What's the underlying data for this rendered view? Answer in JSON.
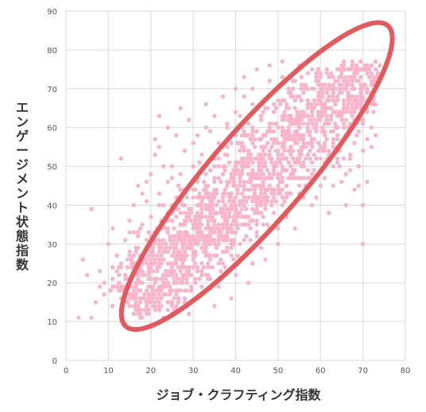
{
  "chart_data": {
    "type": "scatter",
    "title": "",
    "xlabel": "ジョブ・クラフティング指数",
    "ylabel": "エンゲージメント状態指数",
    "xlim": [
      0,
      80
    ],
    "ylim": [
      0,
      90
    ],
    "xticks": [
      "0",
      "10",
      "20",
      "30",
      "40",
      "50",
      "60",
      "70",
      "80"
    ],
    "yticks": [
      "0",
      "10",
      "20",
      "30",
      "40",
      "50",
      "60",
      "70",
      "80",
      "90"
    ],
    "grid": true,
    "point_color": "#f9b4cb",
    "ellipse_color": "#e5585b",
    "annotation_ellipse": {
      "center": [
        45,
        47.5
      ],
      "angle_deg": 49,
      "semi_major": 49,
      "semi_minor": 9.5
    },
    "series": [
      {
        "points": [
          [
            3,
            11
          ],
          [
            4,
            26
          ],
          [
            5,
            22
          ],
          [
            6,
            11
          ],
          [
            6,
            39
          ],
          [
            7,
            15
          ],
          [
            8,
            19
          ],
          [
            8,
            23
          ],
          [
            9,
            17
          ],
          [
            10,
            30
          ],
          [
            11,
            14
          ],
          [
            11,
            21
          ],
          [
            11,
            34
          ],
          [
            12,
            27
          ],
          [
            12,
            19
          ],
          [
            13,
            16
          ],
          [
            13,
            25
          ],
          [
            13,
            52
          ],
          [
            14,
            31
          ],
          [
            14,
            22
          ],
          [
            15,
            36
          ],
          [
            15,
            28
          ],
          [
            15,
            17
          ],
          [
            16,
            24
          ],
          [
            16,
            40
          ],
          [
            16,
            33
          ],
          [
            17,
            20
          ],
          [
            17,
            29
          ],
          [
            17,
            45
          ],
          [
            17,
            14
          ],
          [
            18,
            26
          ],
          [
            18,
            35
          ],
          [
            18,
            22
          ],
          [
            18,
            11
          ],
          [
            19,
            31
          ],
          [
            19,
            41
          ],
          [
            19,
            18
          ],
          [
            20,
            28
          ],
          [
            20,
            37
          ],
          [
            20,
            24
          ],
          [
            20,
            48
          ],
          [
            21,
            33
          ],
          [
            21,
            21
          ],
          [
            21,
            15
          ],
          [
            22,
            30
          ],
          [
            22,
            43
          ],
          [
            22,
            26
          ],
          [
            22,
            55
          ],
          [
            23,
            35
          ],
          [
            23,
            19
          ],
          [
            23,
            40
          ],
          [
            24,
            28
          ],
          [
            24,
            46
          ],
          [
            24,
            33
          ],
          [
            25,
            23
          ],
          [
            25,
            38
          ],
          [
            25,
            50
          ],
          [
            26,
            30
          ],
          [
            26,
            42
          ],
          [
            26,
            17
          ],
          [
            27,
            35
          ],
          [
            27,
            27
          ],
          [
            27,
            48
          ],
          [
            27,
            65
          ],
          [
            28,
            32
          ],
          [
            28,
            40
          ],
          [
            28,
            22
          ],
          [
            28,
            54
          ],
          [
            29,
            37
          ],
          [
            29,
            45
          ],
          [
            29,
            29
          ],
          [
            29,
            12
          ],
          [
            30,
            34
          ],
          [
            30,
            50
          ],
          [
            30,
            42
          ],
          [
            30,
            26
          ],
          [
            31,
            38
          ],
          [
            31,
            47
          ],
          [
            31,
            30
          ],
          [
            31,
            58
          ],
          [
            32,
            41
          ],
          [
            32,
            35
          ],
          [
            32,
            53
          ],
          [
            32,
            22
          ],
          [
            33,
            45
          ],
          [
            33,
            37
          ],
          [
            33,
            31
          ],
          [
            33,
            60
          ],
          [
            34,
            49
          ],
          [
            34,
            40
          ],
          [
            34,
            34
          ],
          [
            34,
            27
          ],
          [
            35,
            44
          ],
          [
            35,
            52
          ],
          [
            35,
            38
          ],
          [
            35,
            63
          ],
          [
            36,
            47
          ],
          [
            36,
            41
          ],
          [
            36,
            33
          ],
          [
            36,
            56
          ],
          [
            37,
            50
          ],
          [
            37,
            43
          ],
          [
            37,
            37
          ],
          [
            37,
            25
          ],
          [
            38,
            45
          ],
          [
            38,
            53
          ],
          [
            38,
            39
          ],
          [
            38,
            60
          ],
          [
            39,
            48
          ],
          [
            39,
            42
          ],
          [
            39,
            56
          ],
          [
            39,
            34
          ],
          [
            40,
            51
          ],
          [
            40,
            45
          ],
          [
            40,
            38
          ],
          [
            40,
            64
          ],
          [
            41,
            54
          ],
          [
            41,
            47
          ],
          [
            41,
            41
          ],
          [
            41,
            30
          ],
          [
            42,
            50
          ],
          [
            42,
            58
          ],
          [
            42,
            44
          ],
          [
            42,
            68
          ],
          [
            43,
            53
          ],
          [
            43,
            46
          ],
          [
            43,
            61
          ],
          [
            43,
            37
          ],
          [
            44,
            56
          ],
          [
            44,
            49
          ],
          [
            44,
            42
          ],
          [
            44,
            70
          ],
          [
            45,
            59
          ],
          [
            45,
            52
          ],
          [
            45,
            45
          ],
          [
            45,
            33
          ],
          [
            46,
            55
          ],
          [
            46,
            62
          ],
          [
            46,
            48
          ],
          [
            46,
            40
          ],
          [
            47,
            58
          ],
          [
            47,
            51
          ],
          [
            47,
            65
          ],
          [
            47,
            44
          ],
          [
            48,
            61
          ],
          [
            48,
            54
          ],
          [
            48,
            47
          ],
          [
            48,
            72
          ],
          [
            49,
            57
          ],
          [
            49,
            64
          ],
          [
            49,
            50
          ],
          [
            49,
            38
          ],
          [
            50,
            60
          ],
          [
            50,
            53
          ],
          [
            50,
            67
          ],
          [
            50,
            45
          ],
          [
            51,
            63
          ],
          [
            51,
            56
          ],
          [
            51,
            49
          ],
          [
            51,
            73
          ],
          [
            52,
            59
          ],
          [
            52,
            66
          ],
          [
            52,
            52
          ],
          [
            52,
            42
          ],
          [
            53,
            62
          ],
          [
            53,
            55
          ],
          [
            53,
            69
          ],
          [
            53,
            48
          ],
          [
            54,
            65
          ],
          [
            54,
            58
          ],
          [
            54,
            51
          ],
          [
            54,
            72
          ],
          [
            55,
            61
          ],
          [
            55,
            68
          ],
          [
            55,
            54
          ],
          [
            55,
            45
          ],
          [
            56,
            64
          ],
          [
            56,
            57
          ],
          [
            56,
            71
          ],
          [
            56,
            50
          ],
          [
            57,
            67
          ],
          [
            57,
            60
          ],
          [
            57,
            53
          ],
          [
            57,
            74
          ],
          [
            58,
            63
          ],
          [
            58,
            70
          ],
          [
            58,
            56
          ],
          [
            58,
            48
          ],
          [
            59,
            66
          ],
          [
            59,
            59
          ],
          [
            59,
            72
          ],
          [
            59,
            52
          ],
          [
            60,
            69
          ],
          [
            60,
            62
          ],
          [
            60,
            55
          ],
          [
            60,
            74
          ],
          [
            61,
            65
          ],
          [
            61,
            71
          ],
          [
            61,
            58
          ],
          [
            61,
            50
          ],
          [
            62,
            68
          ],
          [
            62,
            61
          ],
          [
            62,
            73
          ],
          [
            62,
            54
          ],
          [
            63,
            70
          ],
          [
            63,
            64
          ],
          [
            63,
            57
          ],
          [
            63,
            45
          ],
          [
            64,
            67
          ],
          [
            64,
            72
          ],
          [
            64,
            60
          ],
          [
            64,
            52
          ],
          [
            65,
            69
          ],
          [
            65,
            63
          ],
          [
            65,
            74
          ],
          [
            65,
            56
          ],
          [
            66,
            71
          ],
          [
            66,
            65
          ],
          [
            66,
            58
          ],
          [
            66,
            48
          ],
          [
            67,
            68
          ],
          [
            67,
            73
          ],
          [
            67,
            61
          ],
          [
            67,
            53
          ],
          [
            68,
            70
          ],
          [
            68,
            64
          ],
          [
            68,
            56
          ],
          [
            68,
            44
          ],
          [
            69,
            66
          ],
          [
            69,
            72
          ],
          [
            69,
            59
          ],
          [
            69,
            50
          ],
          [
            70,
            68
          ],
          [
            70,
            61
          ],
          [
            70,
            54
          ],
          [
            70,
            30
          ],
          [
            71,
            64
          ],
          [
            71,
            57
          ],
          [
            71,
            46
          ],
          [
            72,
            60
          ],
          [
            72,
            55
          ],
          [
            73,
            58
          ],
          [
            58,
            40
          ],
          [
            62,
            38
          ],
          [
            66,
            40
          ],
          [
            46,
            29
          ],
          [
            44,
            25
          ],
          [
            40,
            22
          ],
          [
            36,
            19
          ],
          [
            32,
            17
          ],
          [
            28,
            15
          ],
          [
            25,
            12
          ],
          [
            34,
            21
          ],
          [
            30,
            24
          ],
          [
            38,
            28
          ],
          [
            42,
            31
          ],
          [
            48,
            34
          ],
          [
            52,
            37
          ],
          [
            56,
            42
          ],
          [
            60,
            45
          ],
          [
            50,
            30
          ],
          [
            54,
            34
          ],
          [
            47,
            26
          ],
          [
            43,
            20
          ],
          [
            39,
            16
          ],
          [
            35,
            14
          ],
          [
            26,
            20
          ],
          [
            22,
            18
          ],
          [
            19,
            13
          ],
          [
            16,
            12
          ],
          [
            24,
            60
          ],
          [
            22,
            63
          ],
          [
            21,
            57
          ],
          [
            26,
            58
          ],
          [
            29,
            62
          ],
          [
            33,
            66
          ],
          [
            37,
            68
          ],
          [
            40,
            70
          ],
          [
            42,
            73
          ],
          [
            45,
            75
          ],
          [
            48,
            76
          ],
          [
            51,
            77
          ],
          [
            55,
            76
          ],
          [
            58,
            75
          ],
          [
            60,
            73
          ],
          [
            30,
            56
          ],
          [
            34,
            59
          ],
          [
            38,
            61
          ],
          [
            41,
            63
          ],
          [
            44,
            66
          ],
          [
            27,
            44
          ],
          [
            25,
            47
          ],
          [
            23,
            50
          ],
          [
            21,
            53
          ],
          [
            19,
            46
          ],
          [
            18,
            43
          ],
          [
            24,
            36
          ],
          [
            26,
            39
          ],
          [
            28,
            36
          ],
          [
            31,
            33
          ],
          [
            33,
            28
          ],
          [
            35,
            31
          ],
          [
            37,
            34
          ],
          [
            39,
            30
          ],
          [
            41,
            26
          ],
          [
            43,
            35
          ],
          [
            45,
            38
          ],
          [
            47,
            41
          ],
          [
            49,
            44
          ],
          [
            51,
            40
          ],
          [
            53,
            43
          ],
          [
            55,
            47
          ],
          [
            57,
            45
          ],
          [
            59,
            42
          ],
          [
            61,
            47
          ],
          [
            63,
            50
          ],
          [
            65,
            46
          ],
          [
            67,
            49
          ],
          [
            69,
            45
          ],
          [
            70,
            40
          ]
        ]
      }
    ]
  }
}
